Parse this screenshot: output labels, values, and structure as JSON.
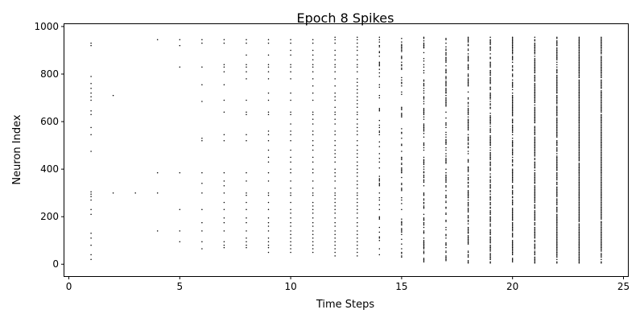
{
  "chart_data": {
    "type": "scatter",
    "title": "Epoch 8 Spikes",
    "xlabel": "Time Steps",
    "ylabel": "Neuron Index",
    "xlim": [
      -0.2,
      25.2
    ],
    "ylim": [
      -50,
      1010
    ],
    "xticks": [
      0,
      5,
      10,
      15,
      20,
      25
    ],
    "yticks": [
      0,
      200,
      400,
      600,
      800,
      1000
    ],
    "grid": false,
    "marker_color": "#000000",
    "series": [
      {
        "x": 1,
        "y": [
          20,
          40,
          80,
          110,
          130,
          210,
          230,
          270,
          285,
          295,
          305,
          475,
          545,
          575,
          630,
          645,
          690,
          705,
          720,
          740,
          760,
          790,
          920,
          930
        ]
      },
      {
        "x": 2,
        "y": [
          300,
          710
        ]
      },
      {
        "x": 3,
        "y": [
          300
        ]
      },
      {
        "x": 4,
        "y": [
          140,
          300,
          385,
          945
        ]
      },
      {
        "x": 5,
        "y": [
          95,
          140,
          230,
          385,
          830,
          920,
          945
        ]
      },
      {
        "x": 6,
        "y": [
          65,
          95,
          140,
          175,
          230,
          300,
          340,
          385,
          520,
          530,
          685,
          755,
          830,
          930,
          945
        ]
      },
      {
        "x": 7,
        "y": [
          70,
          80,
          95,
          140,
          175,
          195,
          230,
          260,
          300,
          330,
          350,
          385,
          520,
          545,
          640,
          690,
          755,
          810,
          830,
          840,
          930,
          945
        ]
      },
      {
        "x": 8,
        "y": [
          70,
          80,
          95,
          110,
          140,
          175,
          195,
          230,
          260,
          290,
          300,
          350,
          385,
          520,
          545,
          630,
          640,
          690,
          780,
          810,
          830,
          840,
          880,
          930,
          945
        ]
      },
      {
        "x": 9,
        "y": [
          50,
          70,
          80,
          95,
          110,
          140,
          160,
          175,
          195,
          230,
          260,
          290,
          300,
          350,
          385,
          430,
          450,
          480,
          520,
          545,
          560,
          630,
          640,
          690,
          720,
          780,
          810,
          830,
          840,
          880,
          930,
          945
        ]
      },
      {
        "x": 10,
        "y": [
          50,
          65,
          80,
          95,
          110,
          125,
          140,
          160,
          175,
          195,
          215,
          230,
          260,
          290,
          300,
          320,
          350,
          385,
          400,
          430,
          450,
          480,
          520,
          545,
          560,
          590,
          630,
          640,
          690,
          720,
          780,
          810,
          830,
          840,
          880,
          900,
          930,
          945
        ]
      },
      {
        "x": 11,
        "y": [
          50,
          65,
          80,
          95,
          110,
          125,
          140,
          160,
          175,
          195,
          215,
          230,
          245,
          260,
          290,
          300,
          320,
          350,
          385,
          400,
          430,
          450,
          480,
          500,
          520,
          545,
          560,
          590,
          610,
          630,
          640,
          690,
          720,
          750,
          780,
          810,
          830,
          840,
          860,
          880,
          900,
          930,
          945
        ]
      },
      {
        "x": 12,
        "y": [
          35,
          50,
          65,
          80,
          95,
          110,
          125,
          140,
          160,
          175,
          195,
          215,
          230,
          245,
          260,
          275,
          290,
          300,
          320,
          350,
          370,
          385,
          400,
          430,
          450,
          465,
          480,
          500,
          520,
          545,
          560,
          590,
          610,
          630,
          640,
          660,
          690,
          705,
          720,
          750,
          780,
          810,
          830,
          840,
          860,
          880,
          900,
          930,
          945,
          955
        ]
      },
      {
        "x": 13,
        "y": [
          35,
          50,
          65,
          80,
          95,
          110,
          125,
          140,
          160,
          175,
          195,
          215,
          230,
          245,
          260,
          275,
          290,
          300,
          320,
          335,
          350,
          370,
          385,
          400,
          415,
          430,
          450,
          465,
          480,
          500,
          520,
          545,
          560,
          575,
          590,
          610,
          630,
          640,
          660,
          675,
          690,
          705,
          720,
          735,
          750,
          765,
          780,
          810,
          830,
          840,
          860,
          880,
          900,
          915,
          930,
          945,
          955
        ]
      }
    ],
    "dense_columns": [
      {
        "x": 14,
        "y_range": [
          35,
          955
        ],
        "density": 0.32
      },
      {
        "x": 15,
        "y_range": [
          5,
          955
        ],
        "density": 0.42
      },
      {
        "x": 16,
        "y_range": [
          5,
          955
        ],
        "density": 0.5
      },
      {
        "x": 17,
        "y_range": [
          5,
          955
        ],
        "density": 0.58
      },
      {
        "x": 18,
        "y_range": [
          5,
          955
        ],
        "density": 0.64
      },
      {
        "x": 19,
        "y_range": [
          5,
          955
        ],
        "density": 0.72
      },
      {
        "x": 20,
        "y_range": [
          5,
          955
        ],
        "density": 0.78
      },
      {
        "x": 21,
        "y_range": [
          5,
          955
        ],
        "density": 0.84
      },
      {
        "x": 22,
        "y_range": [
          5,
          955
        ],
        "density": 0.9
      },
      {
        "x": 23,
        "y_range": [
          5,
          955
        ],
        "density": 0.95
      },
      {
        "x": 24,
        "y_range": [
          5,
          955
        ],
        "density": 0.97
      }
    ]
  }
}
